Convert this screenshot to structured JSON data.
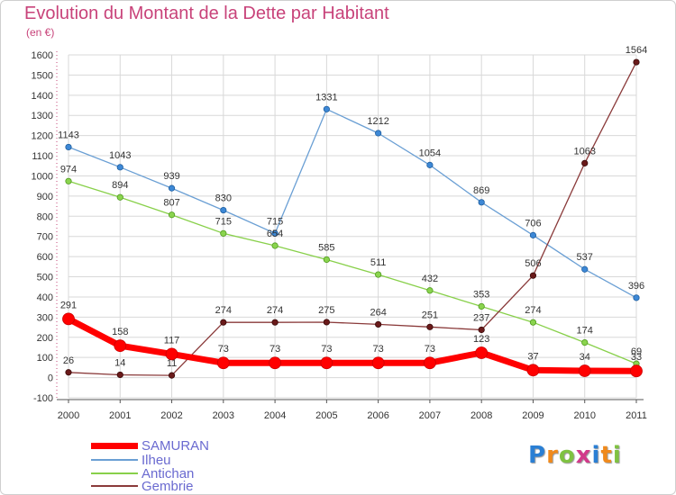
{
  "header": {
    "title": "Evolution du Montant de la Dette par Habitant",
    "unit": "(en €)"
  },
  "colors": {
    "title": "#c8437a",
    "axis": "#555555",
    "grid": "#d8d8d8",
    "legend_text": "#6a6ad0",
    "SAMURAN": "#ff0000",
    "Ilheu": "#6a9fd4",
    "Antichan": "#88d04a",
    "Gembrie": "#8a3a3a"
  },
  "chart_data": {
    "type": "line",
    "title": "Evolution du Montant de la Dette par Habitant",
    "ylabel": "(en €)",
    "xlabel": "",
    "x": [
      "2000",
      "2001",
      "2002",
      "2003",
      "2004",
      "2005",
      "2006",
      "2007",
      "2008",
      "2009",
      "2010",
      "2011"
    ],
    "ylim": [
      -100,
      1600
    ],
    "yticks": [
      -100,
      0,
      100,
      200,
      300,
      400,
      500,
      600,
      700,
      800,
      900,
      1000,
      1100,
      1200,
      1300,
      1400,
      1500,
      1600
    ],
    "grid": true,
    "legend": "bottom-left",
    "series": [
      {
        "name": "SAMURAN",
        "values": [
          291,
          158,
          117,
          73,
          73,
          73,
          73,
          73,
          123,
          37,
          34,
          33
        ]
      },
      {
        "name": "Ilheu",
        "values": [
          1143,
          1043,
          939,
          830,
          715,
          1331,
          1212,
          1054,
          869,
          706,
          537,
          396
        ]
      },
      {
        "name": "Antichan",
        "values": [
          974,
          894,
          807,
          715,
          654,
          585,
          511,
          432,
          353,
          274,
          174,
          69
        ]
      },
      {
        "name": "Gembrie",
        "values": [
          26,
          14,
          11,
          274,
          274,
          275,
          264,
          251,
          237,
          506,
          1063,
          1564
        ]
      }
    ]
  },
  "logo": {
    "text": "Proxiti",
    "letter_colors": [
      "#2a7fd4",
      "#f08a1c",
      "#7fc241",
      "#d23a8a",
      "#2a7fd4",
      "#f08a1c",
      "#7fc241"
    ]
  }
}
